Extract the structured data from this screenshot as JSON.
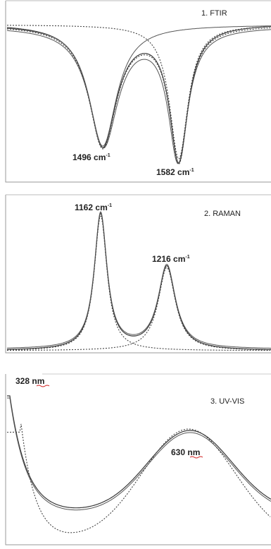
{
  "chart_data": [
    {
      "type": "line",
      "title": "1. FTIR",
      "units": "cm-1",
      "peaks": [
        {
          "position": 1496,
          "label": "1496",
          "unit": "cm",
          "exp": "-1"
        },
        {
          "position": 1582,
          "label": "1582",
          "unit": "cm",
          "exp": "-1"
        }
      ],
      "peak_kind": "absorption bands (minima)",
      "series": [
        {
          "style": "solid",
          "description_key": "fit"
        },
        {
          "style": "dotted",
          "description_key": "measured"
        }
      ]
    },
    {
      "type": "line",
      "title": "2. RAMAN",
      "units": "cm-1",
      "peaks": [
        {
          "position": 1162,
          "label": "1162",
          "unit": "cm",
          "exp": "-1"
        },
        {
          "position": 1216,
          "label": "1216",
          "unit": "cm",
          "exp": "-1"
        }
      ],
      "peak_kind": "scattering bands (maxima)",
      "series": [
        {
          "style": "solid"
        },
        {
          "style": "dotted"
        }
      ]
    },
    {
      "type": "line",
      "title": "3. UV-VIS",
      "units": "nm",
      "peaks": [
        {
          "position": 328,
          "label": "328",
          "unit": "nm"
        },
        {
          "position": 630,
          "label": "630",
          "unit": "nm"
        }
      ],
      "peak_kind": "absorption maxima",
      "series": [
        {
          "style": "solid"
        },
        {
          "style": "dotted"
        }
      ]
    }
  ],
  "colors": {
    "line": "#3a3a3a",
    "frame": "#9a9a9a",
    "underline": "#d02020"
  }
}
